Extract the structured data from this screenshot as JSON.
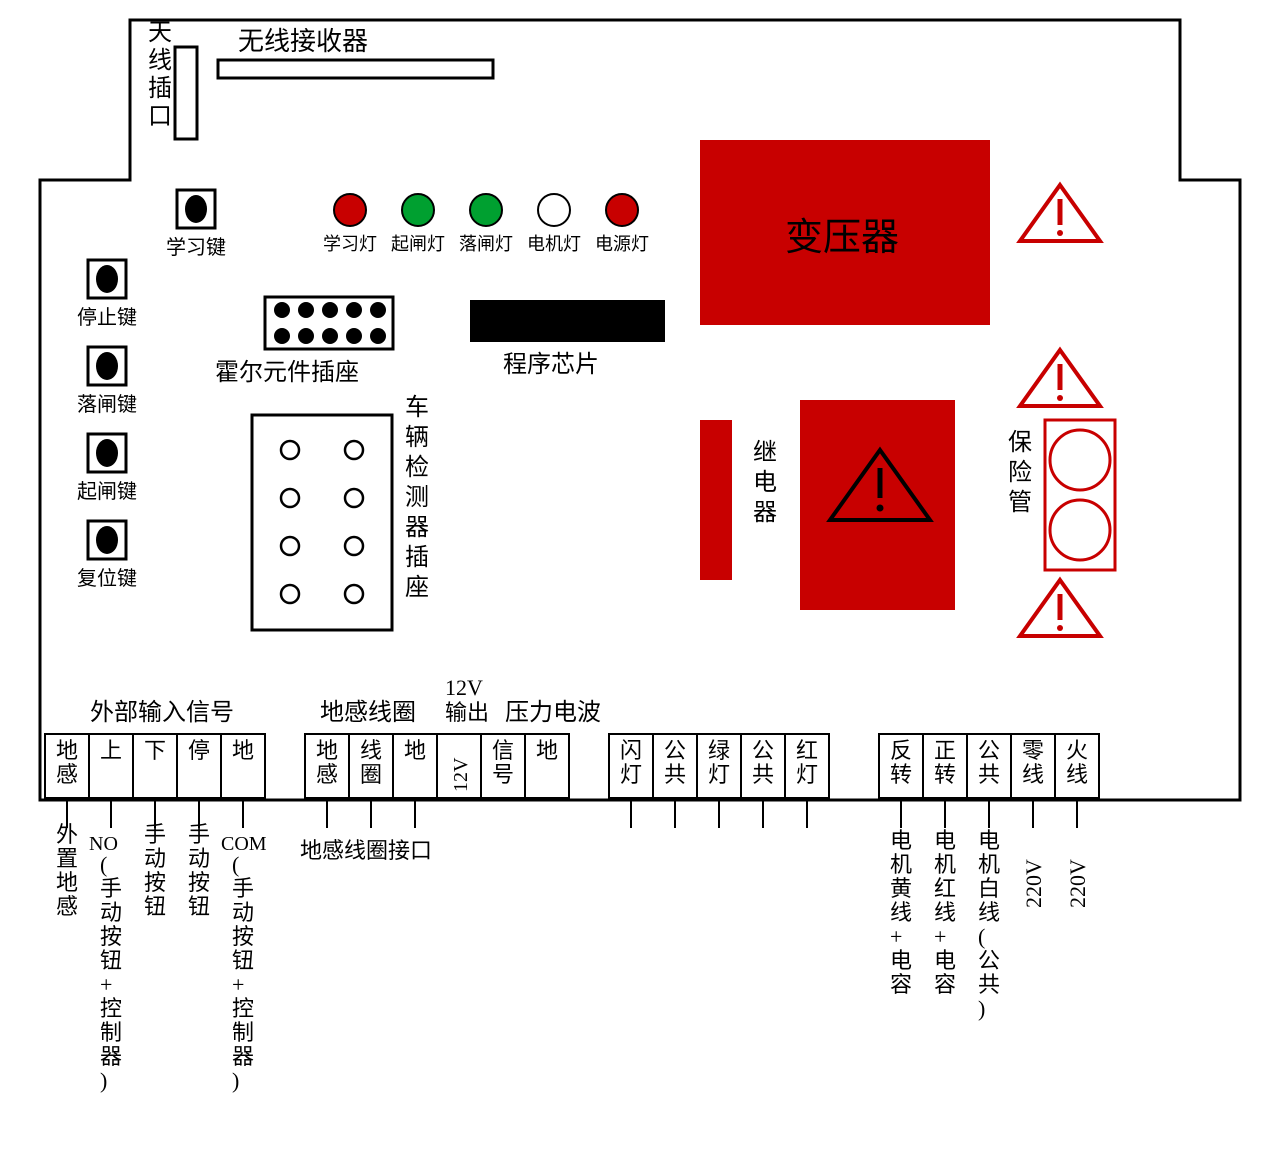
{
  "colors": {
    "stroke": "#000000",
    "red": "#c80000",
    "green": "#00a030",
    "white": "#ffffff",
    "black": "#000000",
    "darkred_stroke": "#b00000"
  },
  "board": {
    "outline_stroke_width": 3
  },
  "antenna_port": {
    "label": "天线插口"
  },
  "wireless_receiver": {
    "label": "无线接收器"
  },
  "buttons": {
    "fontsize": 20,
    "learn": "学习键",
    "stop": "停止键",
    "down_gate": "落闸键",
    "up_gate": "起闸键",
    "reset": "复位键"
  },
  "leds": {
    "fontsize": 18,
    "items": [
      {
        "label": "学习灯",
        "color": "#c80000"
      },
      {
        "label": "起闸灯",
        "color": "#00a030"
      },
      {
        "label": "落闸灯",
        "color": "#00a030"
      },
      {
        "label": "电机灯",
        "color": "#ffffff"
      },
      {
        "label": "电源灯",
        "color": "#c80000"
      }
    ]
  },
  "hall_socket": {
    "label": "霍尔元件插座"
  },
  "program_chip": {
    "label": "程序芯片"
  },
  "transformer": {
    "label": "变压器",
    "fill": "#c80000",
    "fontsize": 38
  },
  "relay": {
    "label": "继电器",
    "fill": "#c80000"
  },
  "fuse": {
    "label": "保险管",
    "fill": "#c80000"
  },
  "vehicle_detector": {
    "label": "车辆检测器插座"
  },
  "section_headers": {
    "external_input": "外部输入信号",
    "ground_coil": "地感线圈",
    "out12v": "12V输出",
    "pressure_wave": "压力电波"
  },
  "terminals": {
    "group1": [
      {
        "label": "地感",
        "sub": "外置地感"
      },
      {
        "label": "上",
        "sub": "NO(手动按钮+控制器)",
        "top": "NO"
      },
      {
        "label": "下",
        "sub": "手动按钮"
      },
      {
        "label": "停",
        "sub": "手动按钮"
      },
      {
        "label": "地",
        "sub": "COM(手动按钮+控制器)",
        "top": "COM"
      }
    ],
    "group2": [
      {
        "label": "地感",
        "sub": "地"
      },
      {
        "label": "线圈",
        "sub": "感"
      },
      {
        "label": "地",
        "sub": "线"
      }
    ],
    "g2_sub_label": "地感线圈接口",
    "group3": [
      {
        "label": "12V"
      },
      {
        "label": "信号"
      },
      {
        "label": "地"
      }
    ],
    "group4": [
      {
        "label": "闪灯"
      },
      {
        "label": "公共"
      },
      {
        "label": "绿灯"
      },
      {
        "label": "公共"
      },
      {
        "label": "红灯"
      }
    ],
    "group5": [
      {
        "label": "反转",
        "sub": "电机黄线+电容"
      },
      {
        "label": "正转",
        "sub": "电机红线+电容"
      },
      {
        "label": "公共",
        "sub": "电机白线(公共)"
      },
      {
        "label": "零线",
        "sub": "220V"
      },
      {
        "label": "火线",
        "sub": "220V"
      }
    ]
  }
}
